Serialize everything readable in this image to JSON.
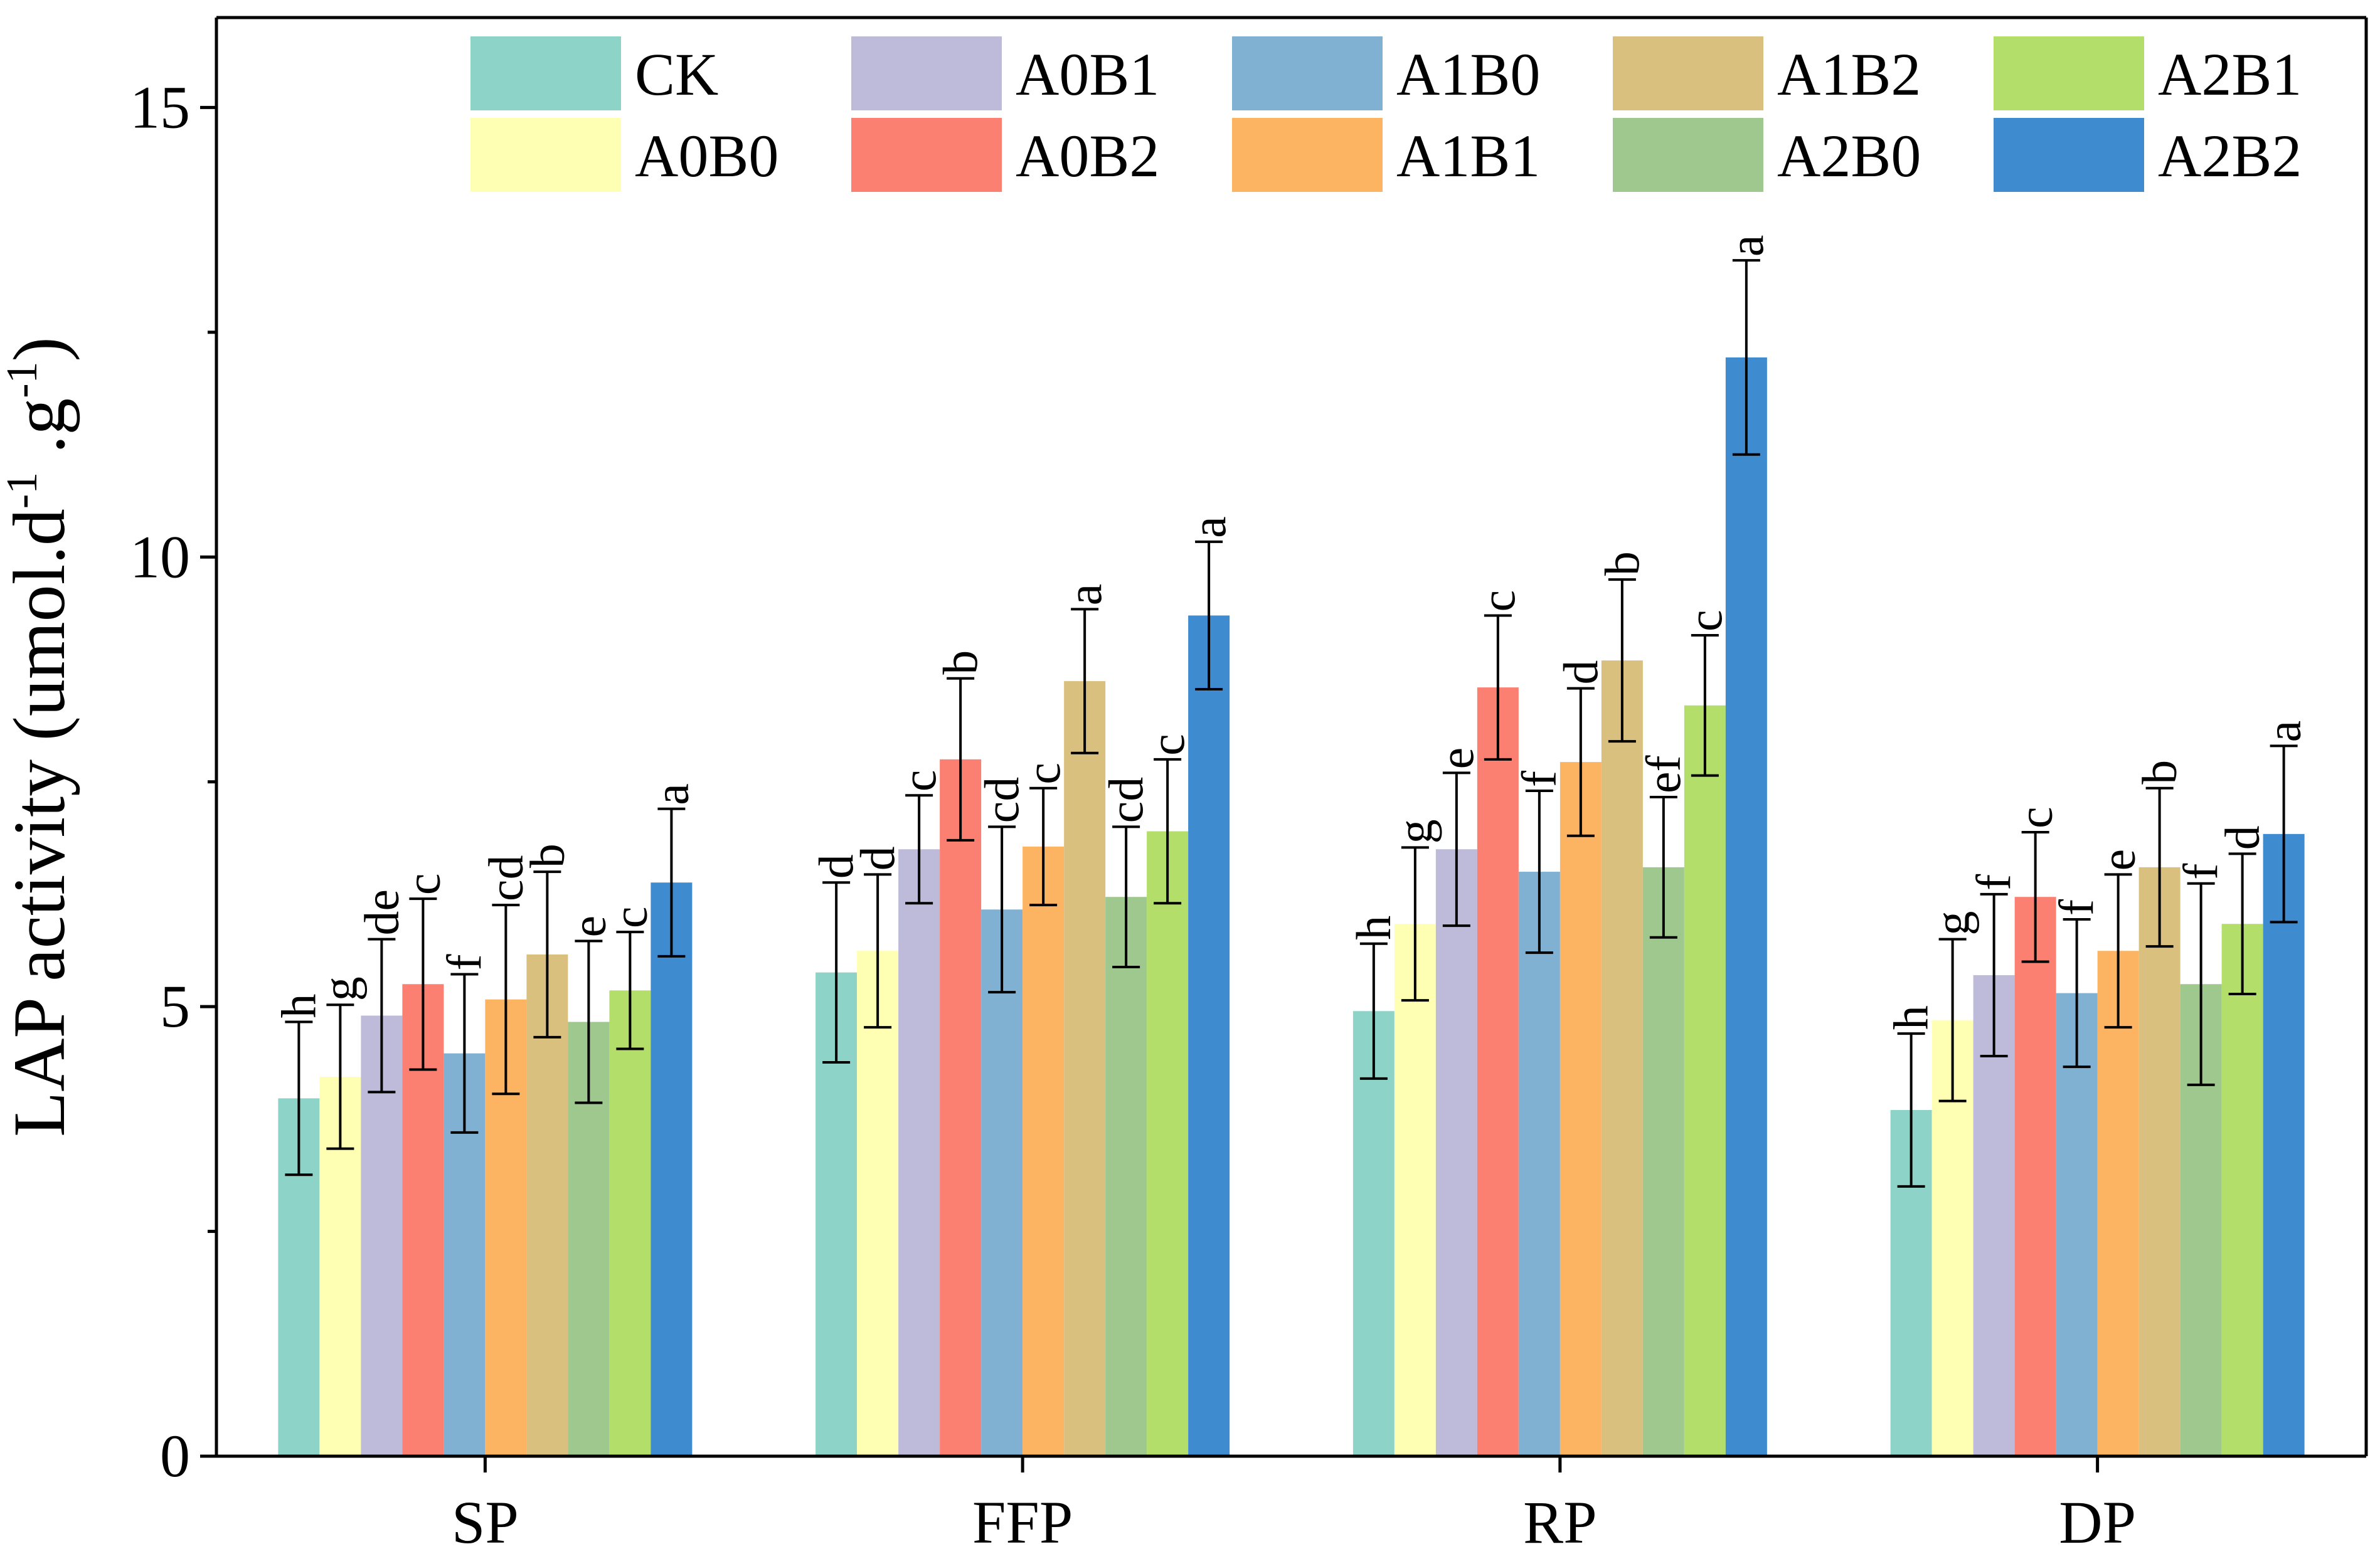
{
  "chart_data": {
    "type": "bar",
    "title": "",
    "xlabel": "",
    "ylabel": {
      "parts": [
        {
          "text": "LAP activity (umol.d",
          "sup": false
        },
        {
          "text": "-1",
          "sup": true
        },
        {
          "text": " .g",
          "sup": false
        },
        {
          "text": "-1",
          "sup": true
        },
        {
          "text": ")",
          "sup": false
        }
      ]
    },
    "ylim": [
      0,
      16
    ],
    "yticks": [
      0,
      5,
      10,
      15
    ],
    "ytick_labels": [
      "0",
      "5",
      "10",
      "15"
    ],
    "grid": false,
    "legend_position": "top",
    "categories": [
      "SP",
      "FFP",
      "RP",
      "DP"
    ],
    "series": [
      {
        "name": "CK",
        "color": "#8dd3c7",
        "values": [
          3.98,
          5.38,
          4.95,
          3.85
        ],
        "errors": [
          0.85,
          1.0,
          0.75,
          0.85
        ],
        "letters": [
          "h",
          "d",
          "h",
          "h"
        ]
      },
      {
        "name": "A0B0",
        "color": "#ffffb3",
        "values": [
          4.22,
          5.62,
          5.92,
          4.85
        ],
        "errors": [
          0.8,
          0.85,
          0.85,
          0.9
        ],
        "letters": [
          "g",
          "d",
          "g",
          "g"
        ]
      },
      {
        "name": "A0B1",
        "color": "#bebada",
        "values": [
          4.9,
          6.75,
          6.75,
          5.35
        ],
        "errors": [
          0.85,
          0.6,
          0.85,
          0.9
        ],
        "letters": [
          "de",
          "c",
          "e",
          "f"
        ]
      },
      {
        "name": "A0B2",
        "color": "#fb8072",
        "values": [
          5.25,
          7.75,
          8.55,
          6.22
        ],
        "errors": [
          0.95,
          0.9,
          0.8,
          0.72
        ],
        "letters": [
          "c",
          "b",
          "c",
          "c"
        ]
      },
      {
        "name": "A1B0",
        "color": "#80b1d3",
        "values": [
          4.48,
          6.08,
          6.5,
          5.15
        ],
        "errors": [
          0.88,
          0.92,
          0.9,
          0.82
        ],
        "letters": [
          "f",
          "cd",
          "f",
          "f"
        ]
      },
      {
        "name": "A1B1",
        "color": "#fdb462",
        "values": [
          5.08,
          6.78,
          7.72,
          5.62
        ],
        "errors": [
          1.05,
          0.65,
          0.82,
          0.85
        ],
        "letters": [
          "cd",
          "c",
          "d",
          "e"
        ]
      },
      {
        "name": "A1B2",
        "color": "#d9c07f",
        "values": [
          5.58,
          8.62,
          8.85,
          6.55
        ],
        "errors": [
          0.92,
          0.8,
          0.9,
          0.88
        ],
        "letters": [
          "b",
          "a",
          "b",
          "b"
        ]
      },
      {
        "name": "A2B0",
        "color": "#9ec88e",
        "values": [
          4.83,
          6.22,
          6.55,
          5.25
        ],
        "errors": [
          0.9,
          0.78,
          0.78,
          1.12
        ],
        "letters": [
          "e",
          "cd",
          "ef",
          "f"
        ]
      },
      {
        "name": "A2B1",
        "color": "#b3de69",
        "values": [
          5.18,
          6.95,
          8.35,
          5.92
        ],
        "errors": [
          0.65,
          0.8,
          0.78,
          0.78
        ],
        "letters": [
          "c",
          "c",
          "c",
          "d"
        ]
      },
      {
        "name": "A2B2",
        "color": "#3f8bcf",
        "values": [
          6.38,
          9.35,
          12.22,
          6.92
        ],
        "errors": [
          0.82,
          0.82,
          1.08,
          0.98
        ],
        "letters": [
          "a",
          "a",
          "a",
          "a"
        ]
      }
    ]
  }
}
